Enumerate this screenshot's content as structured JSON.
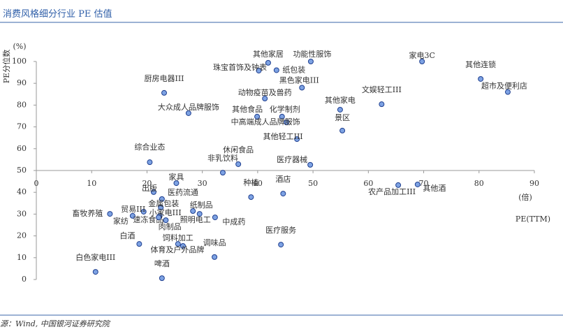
{
  "chart_data": {
    "type": "scatter",
    "title": "消费风格细分行业 PE 估值",
    "source": "源：Wind, 中国银河证券研究院",
    "y_label": "PE分位数",
    "y_unit": "(%)",
    "x_unit": "(倍)",
    "x_label": "PE(TTM)",
    "xlim": [
      0,
      90
    ],
    "ylim": [
      0,
      100
    ],
    "xticks": [
      0,
      10,
      20,
      30,
      40,
      50,
      60,
      70,
      80,
      90
    ],
    "yticks": [
      0,
      10,
      20,
      30,
      40,
      50,
      60,
      70,
      80,
      90,
      100
    ],
    "color": "#7da2e3",
    "labels": [
      "家电3C",
      "其他连锁",
      "超市及便利店",
      "其他家居",
      "功能性服饰",
      "珠宝首饰及钟表",
      "纸包装",
      "黑色家电III",
      "厨房电器III",
      "动物疫苗及兽药",
      "文娱轻工III",
      "其他家电",
      "大众成人品牌服饰",
      "其他食品",
      "化学制剂",
      "中高端成人品牌服饰",
      "景区",
      "其他轻工III",
      "综合业态",
      "休闲食品",
      "医疗器械",
      "非乳饮料",
      "家具",
      "种植",
      "酒店",
      "出版",
      "农产品加工III",
      "其他酒",
      "医药流通",
      "金属包装",
      "畜牧养殖",
      "贸易III",
      "小家电III",
      "家纺",
      "速冻食品",
      "纸制品",
      "照明电工",
      "中成药",
      "肉制品",
      "白酒",
      "医疗服务",
      "饲料加工",
      "体育及户外品牌",
      "调味品",
      "白色家电III",
      "啤酒"
    ],
    "x": [
      69.7,
      80.3,
      85.2,
      41.9,
      49.6,
      40.2,
      43.4,
      48.0,
      23.1,
      41.3,
      62.4,
      54.9,
      27.5,
      39.9,
      44.4,
      45.2,
      55.3,
      47.1,
      20.5,
      36.5,
      49.5,
      33.7,
      25.3,
      38.8,
      44.6,
      21.2,
      65.4,
      68.9,
      22.7,
      22.5,
      13.3,
      19.4,
      22.3,
      17.4,
      23.4,
      28.3,
      29.5,
      32.3,
      22.1,
      18.6,
      44.2,
      25.6,
      26.5,
      32.2,
      10.7,
      22.7
    ],
    "values": [
      100,
      92,
      86,
      99.4,
      100,
      95.8,
      96,
      88,
      85.6,
      83,
      80.4,
      77.9,
      76.3,
      74.7,
      74.7,
      72.1,
      68.3,
      64.4,
      53.8,
      52.9,
      52.6,
      49,
      44.2,
      37.8,
      39.4,
      40.1,
      43.3,
      43.6,
      36.9,
      33,
      30.1,
      31.1,
      29.2,
      29.2,
      27.2,
      31.4,
      30.1,
      28.5,
      28.5,
      16.3,
      16,
      16.3,
      15.4,
      10.3,
      3.5,
      0.6
    ]
  }
}
